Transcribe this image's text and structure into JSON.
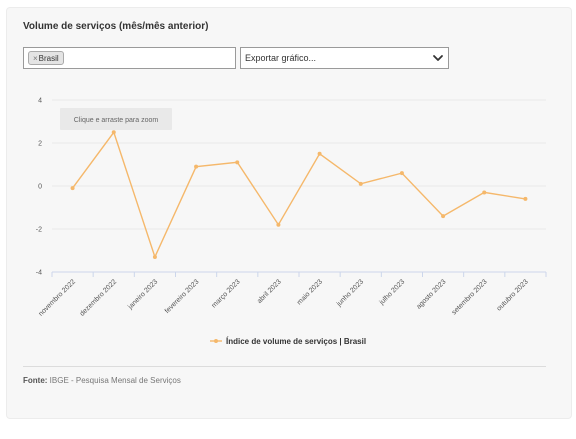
{
  "title": "Volume de serviços (mês/mês anterior)",
  "filter": {
    "chip_remove": "×",
    "chip_label": "Brasil"
  },
  "export": {
    "label": "Exportar gráfico..."
  },
  "zoom_hint": "Clique e arraste para zoom",
  "source": {
    "label": "Fonte:",
    "text": "IBGE - Pesquisa Mensal de Serviços"
  },
  "colors": {
    "series": "#f5b86b",
    "grid": "#e8e8e8",
    "axis": "#ccd6eb"
  },
  "chart_data": {
    "type": "line",
    "categories": [
      "novembro 2022",
      "dezembro 2022",
      "janeiro 2023",
      "fevereiro 2023",
      "março 2023",
      "abril 2023",
      "maio 2023",
      "junho 2023",
      "julho 2023",
      "agosto 2023",
      "setembro 2023",
      "outubro 2023"
    ],
    "series": [
      {
        "name": "Índice de volume de serviços | Brasil",
        "values": [
          -0.1,
          2.5,
          -3.3,
          0.9,
          1.1,
          -1.8,
          1.5,
          0.1,
          0.6,
          -1.4,
          -0.3,
          -0.6
        ]
      }
    ],
    "yticks": [
      4,
      2,
      0,
      -2,
      -4
    ],
    "ylim": [
      -4,
      4
    ],
    "grid": true,
    "legend_position": "bottom-center"
  }
}
